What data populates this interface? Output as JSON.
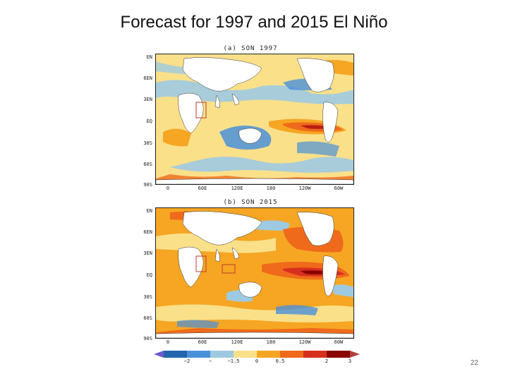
{
  "slide": {
    "title": "Forecast for 1997 and 2015 El Niño",
    "page_number": "22"
  },
  "panels": [
    {
      "title": "(a) SON 1997",
      "lat_labels": [
        "EN",
        "6EN",
        "3EN",
        "EQ",
        "30S",
        "60S",
        "90S"
      ],
      "lon_labels": [
        "0",
        "60E",
        "120E",
        "180",
        "120W",
        "60W"
      ]
    },
    {
      "title": "(b) SON 2015",
      "lat_labels": [
        "EN",
        "6EN",
        "3EN",
        "EQ",
        "30S",
        "60S",
        "90S"
      ],
      "lon_labels": [
        "0",
        "60E",
        "120E",
        "180",
        "120W",
        "60W"
      ]
    }
  ],
  "colorbar": {
    "labels": [
      "−2",
      "−",
      "−1.5",
      "0",
      "0.5",
      "",
      "2",
      "3",
      ""
    ],
    "colors": [
      "#6a5acd",
      "#2166ac",
      "#4a90d9",
      "#9ecae1",
      "#fbe08a",
      "#f6a623",
      "#ef6a1b",
      "#d7301f",
      "#8b0000",
      "#b0413e"
    ]
  },
  "colors": {
    "land": "#ffffff",
    "warm_anomaly": "#ef6a1b",
    "strong_warm": "#b81d13",
    "cool_anomaly": "#4a90d9",
    "neutral": "#fbe08a",
    "box_outline": "#c0392b"
  }
}
